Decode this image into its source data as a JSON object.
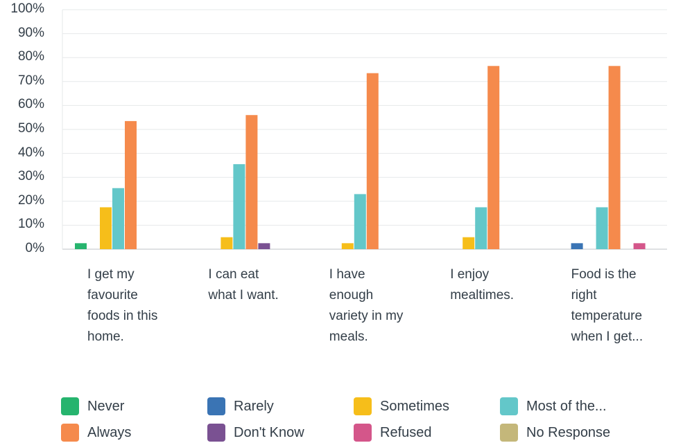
{
  "chart_data": {
    "type": "bar",
    "ylim": [
      0,
      100
    ],
    "yticks": [
      "0%",
      "10%",
      "20%",
      "30%",
      "40%",
      "50%",
      "60%",
      "70%",
      "80%",
      "90%",
      "100%"
    ],
    "categories": [
      "I get my favourite foods in this home.",
      "I can eat what I want.",
      "I have enough variety in my meals.",
      "I enjoy mealtimes.",
      "Food is the right temperature when I get..."
    ],
    "category_display": [
      "I get my\nfavourite\nfoods in this\nhome.",
      "I can eat\nwhat I want.",
      "I have\nenough\nvariety in my\nmeals.",
      "I enjoy\nmealtimes.",
      "Food is the\nright\ntemperature\nwhen I get..."
    ],
    "series": [
      {
        "name": "Never",
        "color": "#26b46e",
        "values": [
          2.5,
          0,
          0,
          0,
          0
        ]
      },
      {
        "name": "Rarely",
        "color": "#3a74b4",
        "values": [
          0,
          0,
          0,
          0,
          2.5
        ]
      },
      {
        "name": "Sometimes",
        "color": "#f6be1a",
        "values": [
          17.5,
          5,
          2.5,
          5,
          0
        ]
      },
      {
        "name": "Most of the...",
        "color": "#63c7c9",
        "values": [
          25.5,
          35.5,
          23,
          17.5,
          17.5
        ]
      },
      {
        "name": "Always",
        "color": "#f58a4c",
        "values": [
          53.5,
          56,
          73.5,
          76.5,
          76.5
        ]
      },
      {
        "name": "Don't Know",
        "color": "#7a5192",
        "values": [
          0,
          2.5,
          0,
          0,
          0
        ]
      },
      {
        "name": "Refused",
        "color": "#d4568a",
        "values": [
          0,
          0,
          0,
          0,
          2.5
        ]
      },
      {
        "name": "No Response",
        "color": "#c4b77a",
        "values": [
          0,
          0,
          0,
          0,
          0
        ]
      }
    ],
    "grid": true,
    "legend_position": "bottom"
  }
}
